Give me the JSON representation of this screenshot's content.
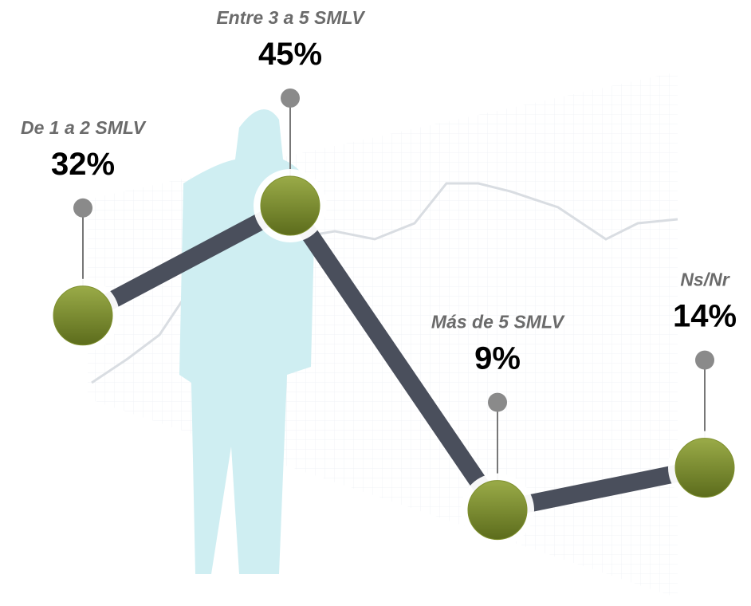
{
  "chart_data": {
    "type": "line",
    "categories": [
      "De 1 a 2 SMLV",
      "Entre 3 a 5 SMLV",
      "Más de 5 SMLV",
      "Ns/Nr"
    ],
    "values": [
      32,
      45,
      9,
      14
    ],
    "value_labels": [
      "32%",
      "45%",
      "9%",
      "14%"
    ],
    "color": "#4a4f5c",
    "marker_color": "#7d8f2c"
  }
}
